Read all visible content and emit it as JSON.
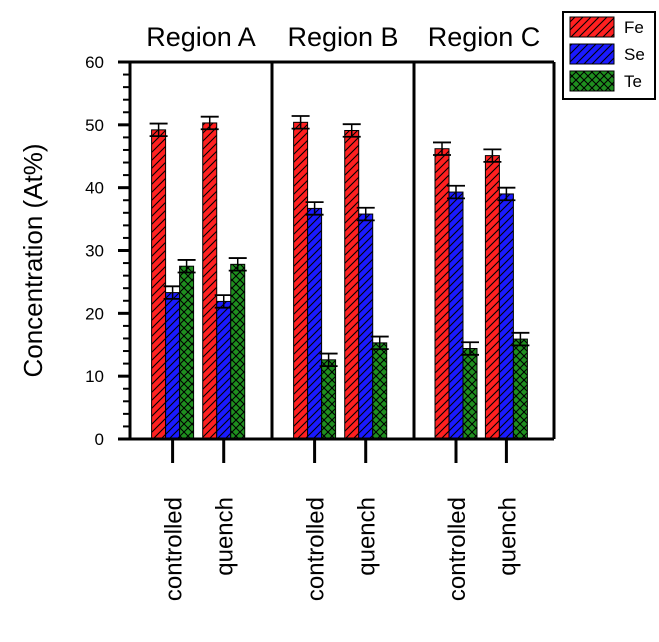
{
  "chart_data": {
    "type": "bar",
    "ylabel": "Concentration (At%)",
    "ylim": [
      0,
      60
    ],
    "yticks": [
      0,
      10,
      20,
      30,
      40,
      50,
      60
    ],
    "legend_position": "top-right",
    "series": [
      {
        "name": "Fe",
        "color": "#ff2020",
        "pattern": "diagonal-hatch"
      },
      {
        "name": "Se",
        "color": "#1a1aff",
        "pattern": "diagonal-hatch"
      },
      {
        "name": "Te",
        "color": "#1f8f1f",
        "pattern": "crosshatch"
      }
    ],
    "panels": [
      {
        "title": "Region A",
        "categories": [
          "controlled",
          "quench"
        ],
        "values": {
          "Fe": [
            49.2,
            50.3
          ],
          "Se": [
            23.3,
            21.9
          ],
          "Te": [
            27.5,
            27.8
          ]
        },
        "errors": {
          "Fe": [
            1.0,
            1.0
          ],
          "Se": [
            1.0,
            1.0
          ],
          "Te": [
            1.0,
            1.0
          ]
        }
      },
      {
        "title": "Region B",
        "categories": [
          "controlled",
          "quench"
        ],
        "values": {
          "Fe": [
            50.4,
            49.1
          ],
          "Se": [
            36.7,
            35.8
          ],
          "Te": [
            12.6,
            15.3
          ]
        },
        "errors": {
          "Fe": [
            1.0,
            1.0
          ],
          "Se": [
            1.0,
            1.0
          ],
          "Te": [
            1.0,
            1.0
          ]
        }
      },
      {
        "title": "Region C",
        "categories": [
          "controlled",
          "quench"
        ],
        "values": {
          "Fe": [
            46.2,
            45.1
          ],
          "Se": [
            39.3,
            39.0
          ],
          "Te": [
            14.4,
            15.9
          ]
        },
        "errors": {
          "Fe": [
            1.0,
            1.0
          ],
          "Se": [
            1.0,
            1.0
          ],
          "Te": [
            1.0,
            1.0
          ]
        }
      }
    ]
  }
}
